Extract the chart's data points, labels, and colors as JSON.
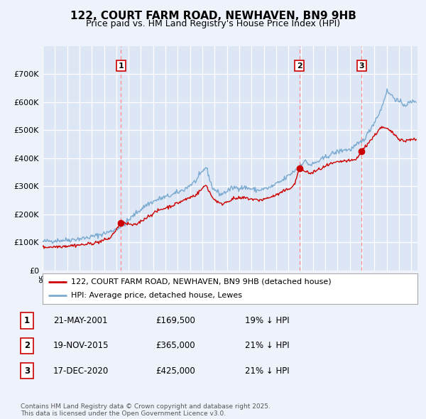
{
  "title": "122, COURT FARM ROAD, NEWHAVEN, BN9 9HB",
  "subtitle": "Price paid vs. HM Land Registry's House Price Index (HPI)",
  "ylim": [
    0,
    800000
  ],
  "yticks": [
    0,
    100000,
    200000,
    300000,
    400000,
    500000,
    600000,
    700000
  ],
  "ytick_labels": [
    "£0",
    "£100K",
    "£200K",
    "£300K",
    "£400K",
    "£500K",
    "£600K",
    "£700K"
  ],
  "bg_color": "#eef2fb",
  "plot_bg": "#dde6f5",
  "grid_color": "#ffffff",
  "sale_color": "#cc0000",
  "hpi_color": "#7aaad0",
  "sale_dates": [
    2001.38,
    2015.89,
    2020.96
  ],
  "sale_prices": [
    169500,
    365000,
    425000
  ],
  "sale_labels": [
    "1",
    "2",
    "3"
  ],
  "vline_color": "#ff8888",
  "legend_sale": "122, COURT FARM ROAD, NEWHAVEN, BN9 9HB (detached house)",
  "legend_hpi": "HPI: Average price, detached house, Lewes",
  "table_rows": [
    [
      "1",
      "21-MAY-2001",
      "£169,500",
      "19% ↓ HPI"
    ],
    [
      "2",
      "19-NOV-2015",
      "£365,000",
      "21% ↓ HPI"
    ],
    [
      "3",
      "17-DEC-2020",
      "£425,000",
      "21% ↓ HPI"
    ]
  ],
  "footer": "Contains HM Land Registry data © Crown copyright and database right 2025.\nThis data is licensed under the Open Government Licence v3.0.",
  "title_fontsize": 11,
  "subtitle_fontsize": 9,
  "tick_fontsize": 8
}
